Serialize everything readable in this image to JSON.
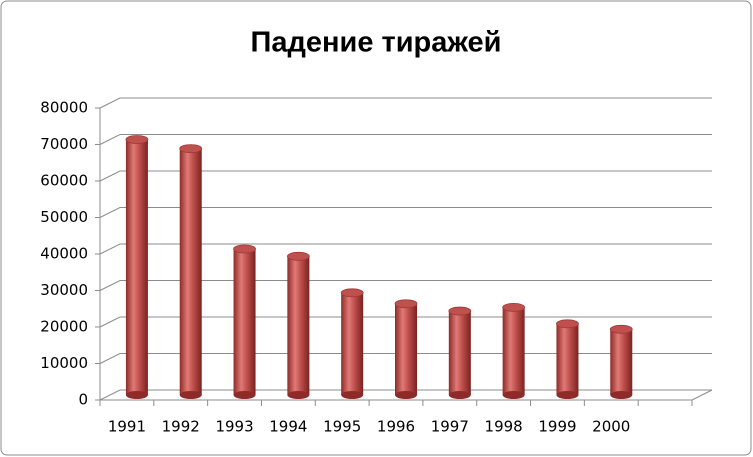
{
  "chart_data": {
    "type": "bar",
    "title": "Падение тиражей",
    "categories": [
      "1991",
      "1992",
      "1993",
      "1994",
      "1995",
      "1996",
      "1997",
      "1998",
      "1999",
      "2000",
      null
    ],
    "values": [
      70000,
      67500,
      40000,
      38000,
      28000,
      25000,
      23000,
      24000,
      19500,
      18000,
      null
    ],
    "color": "#c0504d",
    "ylim": [
      0,
      80000
    ],
    "yticks": [
      0,
      10000,
      20000,
      30000,
      40000,
      50000,
      60000,
      70000,
      80000
    ],
    "grid": true
  }
}
